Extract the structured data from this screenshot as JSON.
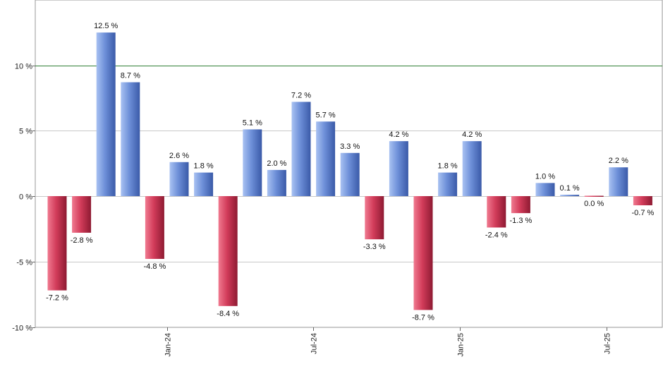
{
  "chart_data": {
    "type": "bar",
    "unit_suffix": " %",
    "ylim": [
      -10,
      13
    ],
    "y_ticks": [
      {
        "value": 10,
        "label": "10 %"
      },
      {
        "value": 5,
        "label": "5 %"
      },
      {
        "value": 0,
        "label": "0 %"
      },
      {
        "value": -5,
        "label": "-5 %"
      },
      {
        "value": -10,
        "label": "-10 %"
      }
    ],
    "x_ticks": [
      {
        "index": 4.5,
        "label": "Jan-24"
      },
      {
        "index": 10.5,
        "label": "Jul-24"
      },
      {
        "index": 16.5,
        "label": "Jan-25"
      },
      {
        "index": 22.5,
        "label": "Jul-25"
      }
    ],
    "reference_line": {
      "value": 10,
      "color": "#2e7d32"
    },
    "grid": true,
    "values": [
      -7.2,
      -2.8,
      12.5,
      8.7,
      -4.8,
      2.6,
      1.8,
      -8.4,
      5.1,
      2.0,
      7.2,
      5.7,
      3.3,
      -3.3,
      4.2,
      -8.7,
      1.8,
      4.2,
      -2.4,
      -1.3,
      1.0,
      0.1,
      0.0,
      2.2,
      -0.7
    ],
    "labels": [
      "-7.2 %",
      "-2.8 %",
      "12.5 %",
      "8.7 %",
      "-4.8 %",
      "2.6 %",
      "1.8 %",
      "-8.4 %",
      "5.1 %",
      "2.0 %",
      "7.2 %",
      "5.7 %",
      "3.3 %",
      "-3.3 %",
      "4.2 %",
      "-8.7 %",
      "1.8 %",
      "4.2 %",
      "-2.4 %",
      "-1.3 %",
      "1.0 %",
      "0.1 %",
      "0.0 %",
      "2.2 %",
      "-0.7 %"
    ],
    "colors": {
      "positive": "#4f74c8",
      "negative": "#c8304e"
    }
  }
}
